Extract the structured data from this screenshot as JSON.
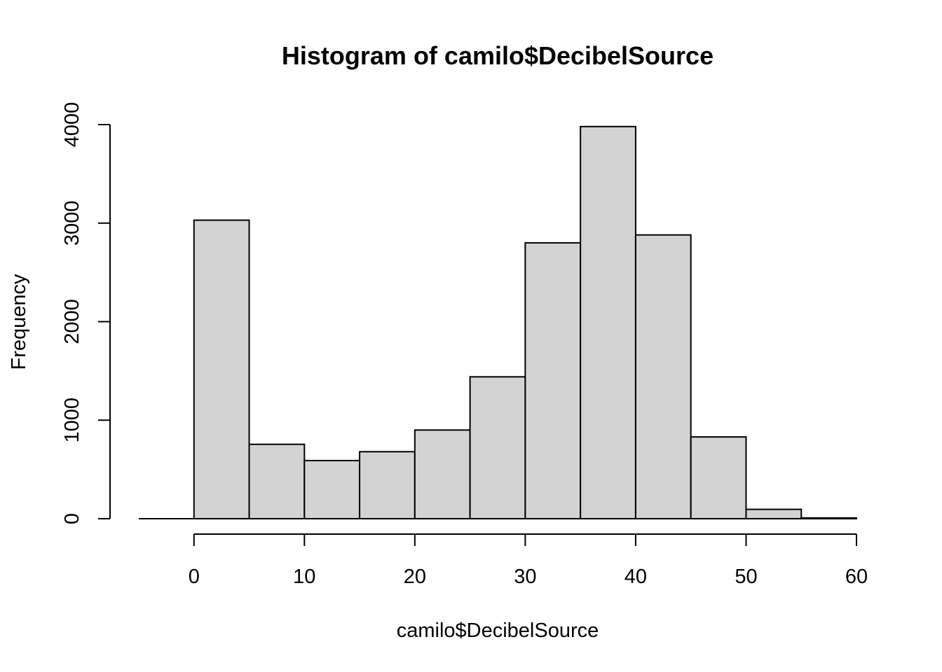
{
  "chart_data": {
    "type": "bar",
    "title": "Histogram of camilo$DecibelSource",
    "xlabel": "camilo$DecibelSource",
    "ylabel": "Frequency",
    "bins": [
      {
        "from": -5,
        "to": 0,
        "count": 0
      },
      {
        "from": 0,
        "to": 5,
        "count": 3030
      },
      {
        "from": 5,
        "to": 10,
        "count": 755
      },
      {
        "from": 10,
        "to": 15,
        "count": 590
      },
      {
        "from": 15,
        "to": 20,
        "count": 680
      },
      {
        "from": 20,
        "to": 25,
        "count": 900
      },
      {
        "from": 25,
        "to": 30,
        "count": 1440
      },
      {
        "from": 30,
        "to": 35,
        "count": 2800
      },
      {
        "from": 35,
        "to": 40,
        "count": 3980
      },
      {
        "from": 40,
        "to": 45,
        "count": 2880
      },
      {
        "from": 45,
        "to": 50,
        "count": 830
      },
      {
        "from": 50,
        "to": 55,
        "count": 95
      },
      {
        "from": 55,
        "to": 60,
        "count": 8
      }
    ],
    "xlim": [
      -5,
      60
    ],
    "ylim": [
      0,
      4000
    ],
    "x_ticks": [
      "0",
      "10",
      "20",
      "30",
      "40",
      "50",
      "60"
    ],
    "y_ticks": [
      "0",
      "1000",
      "2000",
      "3000",
      "4000"
    ],
    "bar_fill": "#d3d3d3",
    "grid": false
  }
}
